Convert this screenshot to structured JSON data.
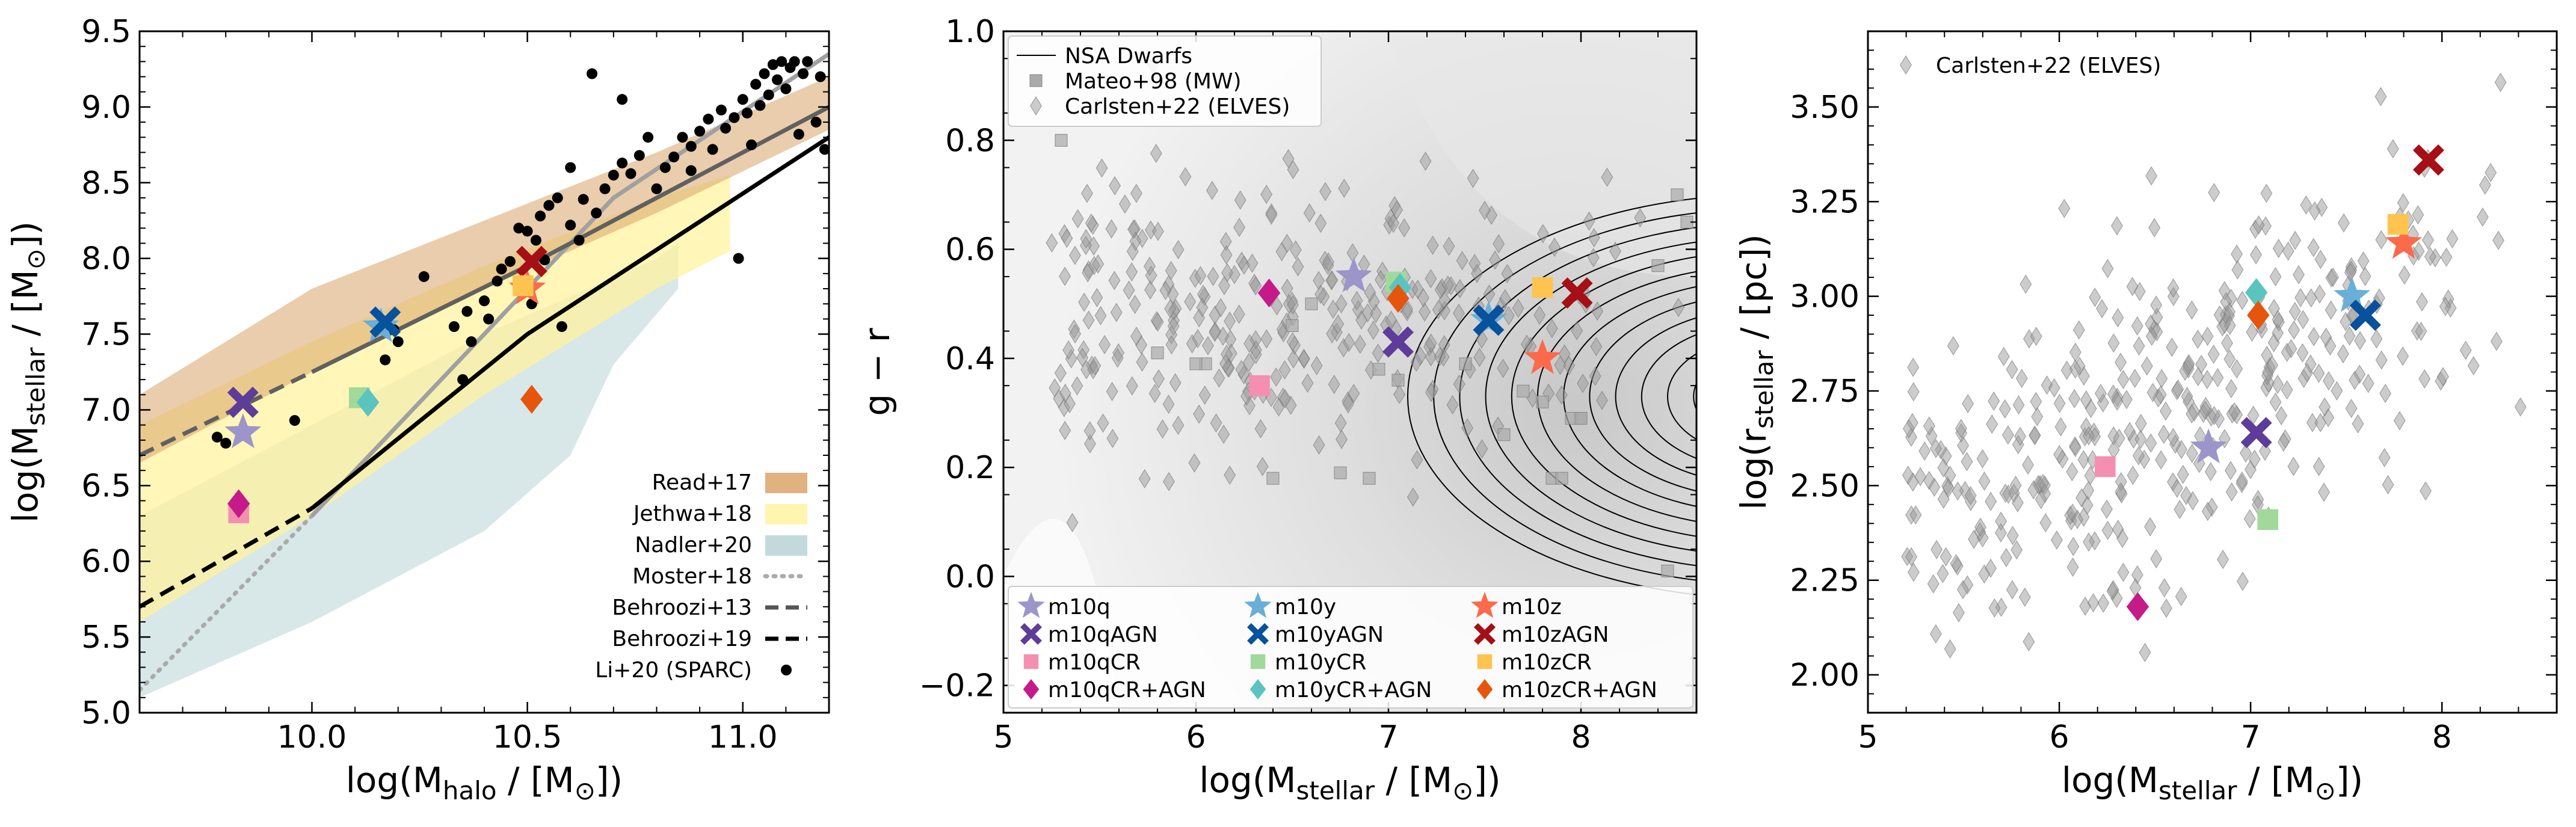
{
  "colors": {
    "m10q": "#9b95c9",
    "m10qAGN": "#5e3c99",
    "m10qCR": "#f48fb1",
    "m10qCRAGN": "#c51b8a",
    "m10y": "#6baed6",
    "m10yAGN": "#08519c",
    "m10yCR": "#a1d99b",
    "m10yCRAGN": "#5bc4bf",
    "m10z": "#fb6a4a",
    "m10zAGN": "#a50f15",
    "m10zCR": "#fec44f",
    "m10zCRAGN": "#e6550d",
    "read17": "#d9a46a",
    "jethwa18": "#fff3a0",
    "nadler20": "#b8d3d6"
  },
  "chart_data": [
    {
      "type": "scatter",
      "panel": "left",
      "xlabel": "log(M_halo / [M⊙])",
      "ylabel": "log(M_stellar / [M⊙])",
      "xlim": [
        9.6,
        11.2
      ],
      "ylim": [
        5.0,
        9.5
      ],
      "xticks": [
        "10.0",
        "10.5",
        "11.0"
      ],
      "yticks": [
        "5.0",
        "5.5",
        "6.0",
        "6.5",
        "7.0",
        "7.5",
        "8.0",
        "8.5",
        "9.0",
        "9.5"
      ],
      "legend_position": "bottom-right",
      "legend": [
        {
          "label": "Read+17",
          "kind": "band",
          "color": "#d9a46a"
        },
        {
          "label": "Jethwa+18",
          "kind": "band",
          "color": "#fff3a0"
        },
        {
          "label": "Nadler+20",
          "kind": "band",
          "color": "#b8d3d6"
        },
        {
          "label": "Moster+18",
          "kind": "dotted",
          "color": "#aaaaaa"
        },
        {
          "label": "Behroozi+13",
          "kind": "dashed",
          "color": "#555555"
        },
        {
          "label": "Behroozi+19",
          "kind": "dashed",
          "color": "#000000"
        },
        {
          "label": "Li+20 (SPARC)",
          "kind": "dot",
          "color": "#000000"
        }
      ],
      "bands": [
        {
          "name": "Nadler+20",
          "upper": [
            [
              9.6,
              6.3
            ],
            [
              10.0,
              6.9
            ],
            [
              10.4,
              7.5
            ],
            [
              10.8,
              8.0
            ],
            [
              10.85,
              8.1
            ]
          ],
          "lower": [
            [
              9.6,
              5.1
            ],
            [
              10.0,
              5.6
            ],
            [
              10.4,
              6.2
            ],
            [
              10.6,
              6.7
            ],
            [
              10.7,
              7.3
            ],
            [
              10.85,
              7.8
            ]
          ]
        },
        {
          "name": "Jethwa+18",
          "upper": [
            [
              9.6,
              6.9
            ],
            [
              10.0,
              7.45
            ],
            [
              10.4,
              7.95
            ],
            [
              10.8,
              8.4
            ],
            [
              10.97,
              8.55
            ]
          ],
          "lower": [
            [
              9.6,
              5.6
            ],
            [
              10.0,
              6.3
            ],
            [
              10.4,
              7.1
            ],
            [
              10.8,
              7.8
            ],
            [
              10.97,
              8.05
            ]
          ]
        },
        {
          "name": "Read+17",
          "upper": [
            [
              9.6,
              7.1
            ],
            [
              10.0,
              7.8
            ],
            [
              10.4,
              8.25
            ],
            [
              10.8,
              8.7
            ],
            [
              11.2,
              9.2
            ]
          ],
          "lower": [
            [
              9.6,
              6.65
            ],
            [
              10.0,
              7.25
            ],
            [
              10.4,
              7.8
            ],
            [
              10.8,
              8.3
            ],
            [
              11.2,
              8.85
            ]
          ]
        }
      ],
      "lines": [
        {
          "name": "Moster+18",
          "style": "dotted",
          "points": [
            [
              9.6,
              5.15
            ],
            [
              10.0,
              6.3
            ]
          ]
        },
        {
          "name": "Moster+18 (solid)",
          "style": "solid-gray",
          "points": [
            [
              10.0,
              6.3
            ],
            [
              10.7,
              8.4
            ],
            [
              11.2,
              9.35
            ]
          ]
        },
        {
          "name": "Behroozi+13",
          "style": "dashed-gray",
          "points": [
            [
              9.6,
              6.7
            ],
            [
              10.0,
              7.25
            ]
          ]
        },
        {
          "name": "Behroozi+13 (solid)",
          "style": "solid-darkgray",
          "points": [
            [
              10.0,
              7.25
            ],
            [
              10.5,
              7.95
            ],
            [
              11.2,
              9.0
            ]
          ]
        },
        {
          "name": "Behroozi+19",
          "style": "dashed-black",
          "points": [
            [
              9.6,
              5.7
            ],
            [
              10.0,
              6.35
            ]
          ]
        },
        {
          "name": "Behroozi+19 (solid)",
          "style": "solid-black",
          "points": [
            [
              10.0,
              6.35
            ],
            [
              10.5,
              7.5
            ],
            [
              11.2,
              8.8
            ]
          ]
        }
      ],
      "li20": [
        [
          9.78,
          6.82
        ],
        [
          9.8,
          6.78
        ],
        [
          9.96,
          6.93
        ],
        [
          10.17,
          7.33
        ],
        [
          10.19,
          7.53
        ],
        [
          10.2,
          7.45
        ],
        [
          10.26,
          7.88
        ],
        [
          10.33,
          7.55
        ],
        [
          10.35,
          7.2
        ],
        [
          10.36,
          7.65
        ],
        [
          10.37,
          7.45
        ],
        [
          10.4,
          7.72
        ],
        [
          10.41,
          7.6
        ],
        [
          10.43,
          7.85
        ],
        [
          10.44,
          7.93
        ],
        [
          10.46,
          7.98
        ],
        [
          10.48,
          8.2
        ],
        [
          10.5,
          8.18
        ],
        [
          10.51,
          7.7
        ],
        [
          10.52,
          8.12
        ],
        [
          10.53,
          8.28
        ],
        [
          10.54,
          7.99
        ],
        [
          10.55,
          8.35
        ],
        [
          10.57,
          8.4
        ],
        [
          10.58,
          7.55
        ],
        [
          10.6,
          8.6
        ],
        [
          10.6,
          8.22
        ],
        [
          10.62,
          8.12
        ],
        [
          10.63,
          8.39
        ],
        [
          10.65,
          9.22
        ],
        [
          10.66,
          8.3
        ],
        [
          10.68,
          8.46
        ],
        [
          10.7,
          8.55
        ],
        [
          10.72,
          9.05
        ],
        [
          10.72,
          8.63
        ],
        [
          10.74,
          8.56
        ],
        [
          10.76,
          8.68
        ],
        [
          10.78,
          8.8
        ],
        [
          10.8,
          8.46
        ],
        [
          10.82,
          8.6
        ],
        [
          10.84,
          8.67
        ],
        [
          10.86,
          8.8
        ],
        [
          10.88,
          8.74
        ],
        [
          10.88,
          8.58
        ],
        [
          10.9,
          8.84
        ],
        [
          10.92,
          8.92
        ],
        [
          10.93,
          8.72
        ],
        [
          10.95,
          8.98
        ],
        [
          10.96,
          8.86
        ],
        [
          10.98,
          8.93
        ],
        [
          10.99,
          8.0
        ],
        [
          11.0,
          9.05
        ],
        [
          11.01,
          8.96
        ],
        [
          11.02,
          8.75
        ],
        [
          11.03,
          9.15
        ],
        [
          11.04,
          9.01
        ],
        [
          11.05,
          9.22
        ],
        [
          11.06,
          9.08
        ],
        [
          11.07,
          9.28
        ],
        [
          11.08,
          9.18
        ],
        [
          11.09,
          9.3
        ],
        [
          11.1,
          9.12
        ],
        [
          11.11,
          9.26
        ],
        [
          11.12,
          9.3
        ],
        [
          11.13,
          8.82
        ],
        [
          11.14,
          9.22
        ],
        [
          11.15,
          9.3
        ],
        [
          11.17,
          8.9
        ],
        [
          11.18,
          9.2
        ],
        [
          11.19,
          8.72
        ]
      ],
      "sims": [
        {
          "name": "m10q",
          "x": 9.84,
          "y": 6.85,
          "marker": "star"
        },
        {
          "name": "m10qAGN",
          "x": 9.84,
          "y": 7.05,
          "marker": "x"
        },
        {
          "name": "m10qCR",
          "x": 9.83,
          "y": 6.32,
          "marker": "square"
        },
        {
          "name": "m10qCRAGN",
          "x": 9.83,
          "y": 6.38,
          "marker": "diamond"
        },
        {
          "name": "m10y",
          "x": 10.16,
          "y": 7.55,
          "marker": "star"
        },
        {
          "name": "m10yAGN",
          "x": 10.17,
          "y": 7.58,
          "marker": "x"
        },
        {
          "name": "m10yCR",
          "x": 10.11,
          "y": 7.08,
          "marker": "square"
        },
        {
          "name": "m10yCRAGN",
          "x": 10.13,
          "y": 7.05,
          "marker": "diamond"
        },
        {
          "name": "m10z",
          "x": 10.5,
          "y": 7.8,
          "marker": "star"
        },
        {
          "name": "m10zAGN",
          "x": 10.51,
          "y": 7.98,
          "marker": "x"
        },
        {
          "name": "m10zCR",
          "x": 10.49,
          "y": 7.82,
          "marker": "square"
        },
        {
          "name": "m10zCRAGN",
          "x": 10.51,
          "y": 7.07,
          "marker": "diamond"
        }
      ]
    },
    {
      "type": "scatter",
      "panel": "middle",
      "xlabel": "log(M_stellar / [M⊙])",
      "ylabel": "g − r",
      "xlim": [
        5.0,
        8.6
      ],
      "ylim": [
        -0.25,
        1.0
      ],
      "xticks": [
        "5",
        "6",
        "7",
        "8"
      ],
      "yticks": [
        "−0.2",
        "0.0",
        "0.2",
        "0.4",
        "0.6",
        "0.8",
        "1.0"
      ],
      "legend_top": [
        {
          "label": "NSA Dwarfs",
          "kind": "line"
        },
        {
          "label": "Mateo+98 (MW)",
          "kind": "square"
        },
        {
          "label": "Carlsten+22 (ELVES)",
          "kind": "diamond"
        }
      ],
      "legend_sims": [
        "m10q",
        "m10qAGN",
        "m10qCR",
        "m10qCR+AGN",
        "m10y",
        "m10yAGN",
        "m10yCR",
        "m10yCR+AGN",
        "m10z",
        "m10zAGN",
        "m10zCR",
        "m10zCR+AGN"
      ],
      "mateo98": [
        [
          5.3,
          0.8
        ],
        [
          6.05,
          0.39
        ],
        [
          6.0,
          0.39
        ],
        [
          6.6,
          0.5
        ],
        [
          6.95,
          0.38
        ],
        [
          7.05,
          0.36
        ],
        [
          7.7,
          0.34
        ],
        [
          7.8,
          0.32
        ],
        [
          7.85,
          0.18
        ],
        [
          7.9,
          0.18
        ],
        [
          8.0,
          0.29
        ],
        [
          5.8,
          0.41
        ],
        [
          6.4,
          0.18
        ],
        [
          6.5,
          0.46
        ],
        [
          6.9,
          0.18
        ],
        [
          8.45,
          0.01
        ],
        [
          8.5,
          0.7
        ],
        [
          8.4,
          0.57
        ],
        [
          8.55,
          0.65
        ],
        [
          6.75,
          0.19
        ],
        [
          7.4,
          0.39
        ],
        [
          7.6,
          0.26
        ],
        [
          7.95,
          0.29
        ],
        [
          8.0,
          0.29
        ]
      ],
      "elves_region": {
        "x": [
          5.25,
          8.55
        ],
        "y_mean": 0.47,
        "y_spread": 0.17
      },
      "sims": [
        {
          "name": "m10q",
          "x": 6.82,
          "y": 0.55,
          "marker": "star"
        },
        {
          "name": "m10qAGN",
          "x": 7.05,
          "y": 0.43,
          "marker": "x"
        },
        {
          "name": "m10qCR",
          "x": 6.33,
          "y": 0.35,
          "marker": "square"
        },
        {
          "name": "m10qCRAGN",
          "x": 6.38,
          "y": 0.52,
          "marker": "diamond"
        },
        {
          "name": "m10y",
          "x": 7.52,
          "y": 0.47,
          "marker": "star"
        },
        {
          "name": "m10yAGN",
          "x": 7.52,
          "y": 0.47,
          "marker": "x"
        },
        {
          "name": "m10yCR",
          "x": 7.04,
          "y": 0.54,
          "marker": "square"
        },
        {
          "name": "m10yCRAGN",
          "x": 7.06,
          "y": 0.53,
          "marker": "diamond"
        },
        {
          "name": "m10z",
          "x": 7.8,
          "y": 0.4,
          "marker": "star"
        },
        {
          "name": "m10zAGN",
          "x": 7.98,
          "y": 0.52,
          "marker": "x"
        },
        {
          "name": "m10zCR",
          "x": 7.8,
          "y": 0.53,
          "marker": "square"
        },
        {
          "name": "m10zCRAGN",
          "x": 7.05,
          "y": 0.51,
          "marker": "diamond"
        }
      ]
    },
    {
      "type": "scatter",
      "panel": "right",
      "xlabel": "log(M_stellar / [M⊙])",
      "ylabel": "log(r_stellar / [pc])",
      "xlim": [
        5.0,
        8.6
      ],
      "ylim": [
        1.9,
        3.7
      ],
      "xticks": [
        "5",
        "6",
        "7",
        "8"
      ],
      "yticks": [
        "2.00",
        "2.25",
        "2.50",
        "2.75",
        "3.00",
        "3.25",
        "3.50"
      ],
      "legend": [
        {
          "label": "Carlsten+22 (ELVES)",
          "kind": "diamond"
        }
      ],
      "elves_region": {
        "x": [
          5.2,
          8.6
        ],
        "y_at_5": 2.35,
        "slope": 0.22,
        "y_spread": 0.22
      },
      "sims": [
        {
          "name": "m10q",
          "x": 6.78,
          "y": 2.6,
          "marker": "star"
        },
        {
          "name": "m10qAGN",
          "x": 7.03,
          "y": 2.64,
          "marker": "x"
        },
        {
          "name": "m10qCR",
          "x": 6.24,
          "y": 2.55,
          "marker": "square"
        },
        {
          "name": "m10qCRAGN",
          "x": 6.41,
          "y": 2.18,
          "marker": "diamond"
        },
        {
          "name": "m10y",
          "x": 7.53,
          "y": 3.0,
          "marker": "star"
        },
        {
          "name": "m10yAGN",
          "x": 7.6,
          "y": 2.95,
          "marker": "x"
        },
        {
          "name": "m10yCR",
          "x": 7.09,
          "y": 2.41,
          "marker": "square"
        },
        {
          "name": "m10yCRAGN",
          "x": 7.03,
          "y": 3.01,
          "marker": "diamond"
        },
        {
          "name": "m10z",
          "x": 7.8,
          "y": 3.14,
          "marker": "star"
        },
        {
          "name": "m10zAGN",
          "x": 7.93,
          "y": 3.36,
          "marker": "x"
        },
        {
          "name": "m10zCR",
          "x": 7.77,
          "y": 3.19,
          "marker": "square"
        },
        {
          "name": "m10zCRAGN",
          "x": 7.04,
          "y": 2.95,
          "marker": "diamond"
        }
      ]
    }
  ]
}
